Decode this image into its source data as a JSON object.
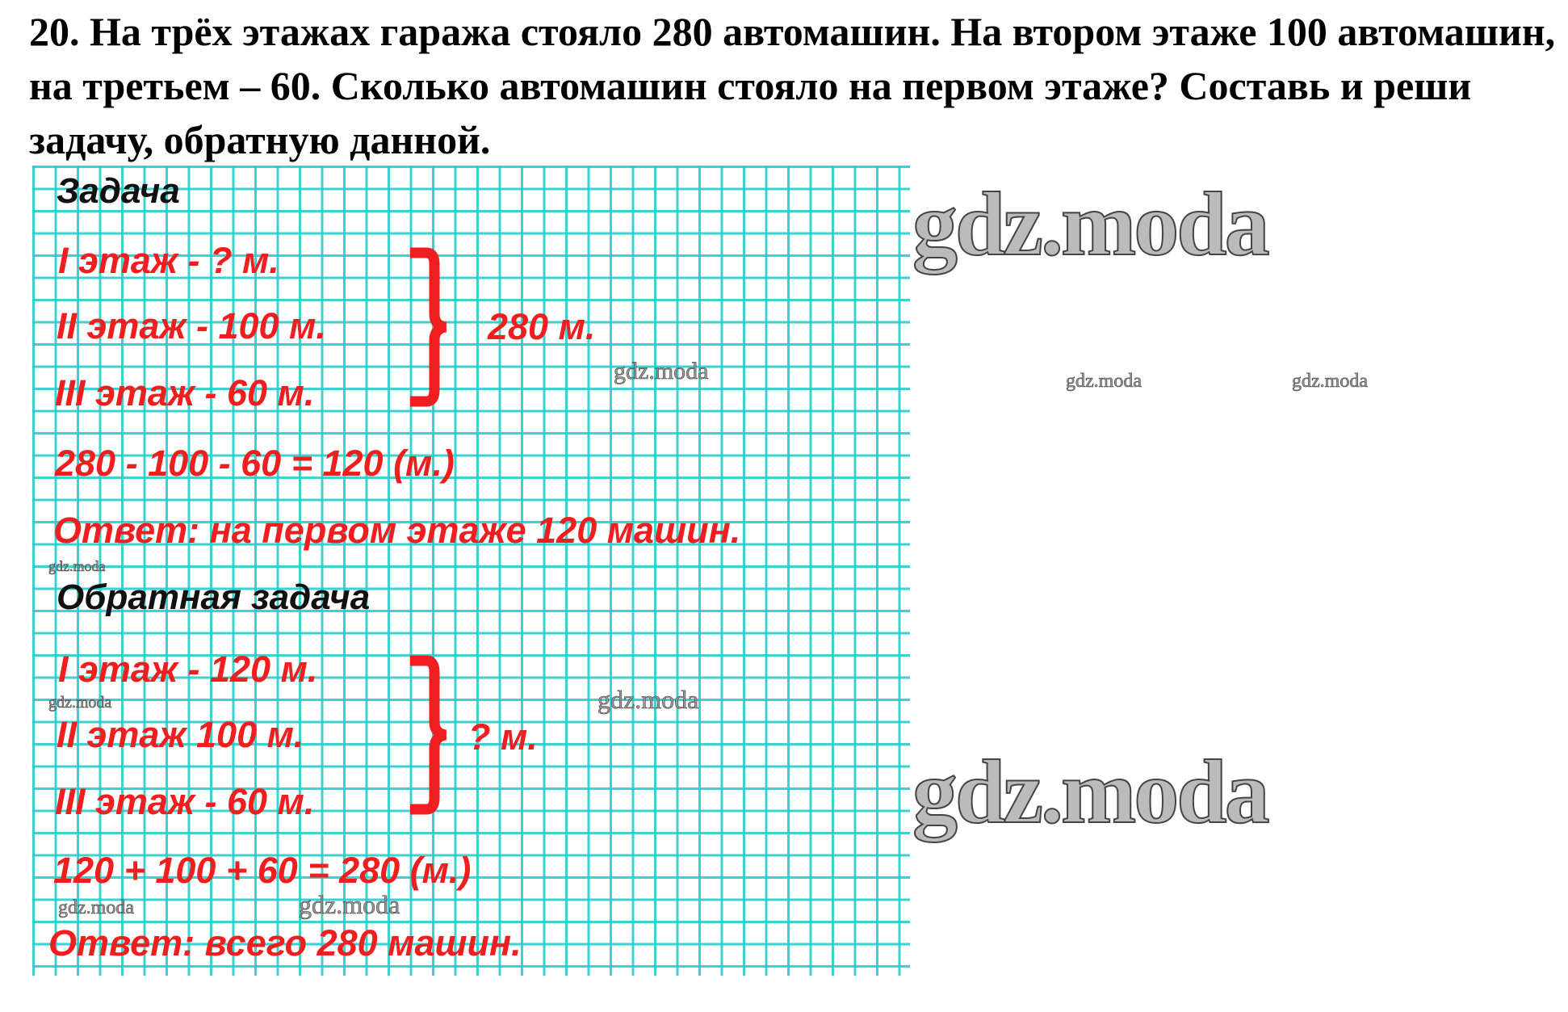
{
  "task": {
    "title": "20. На трёх этажах гаража стояло 280 автомашин. На втором этаже 100 автомашин, на третьем – 60. Сколько автомашин стояло на первом этаже? Составь и реши задачу, обратную данной."
  },
  "solution": {
    "heading": "Задача",
    "lines": [
      "I этаж - ? м.",
      "II этаж - 100 м.",
      "III этаж - 60 м."
    ],
    "total": "280 м.",
    "equation": "280 - 100 - 60 = 120 (м.)",
    "answer": "Ответ: на первом этаже 120 машин."
  },
  "inverse": {
    "heading": "Обратная задача",
    "lines": [
      "I этаж - 120 м.",
      "II этаж 100 м.",
      "III этаж - 60 м."
    ],
    "total": "? м.",
    "equation": "120 + 100 + 60 = 280 (м.)",
    "answer": "Ответ: всего 280 машин."
  },
  "watermark": "gdz.moda",
  "colors": {
    "ink_red": "#f01e1e",
    "grid": "#28cdcd"
  }
}
